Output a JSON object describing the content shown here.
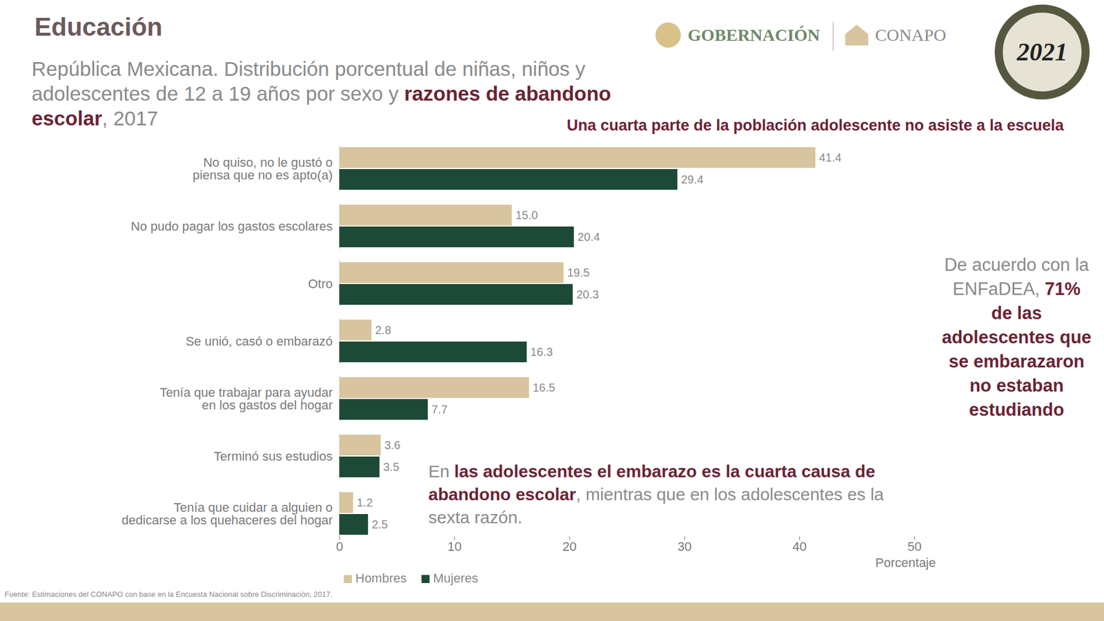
{
  "header": "Educación",
  "logos": [
    "GOBERNACIÓN",
    "CONAPO",
    "2021"
  ],
  "source": "Fuente: Estimaciones del CONAPO con base en la Encuesta Nacional sobre Discriminación, 2017.",
  "chart_data": {
    "type": "bar",
    "orientation": "horizontal",
    "title": [
      "República Mexicana. Distribución porcentual de niñas, niños y adolescentes de 12 a 19 años por sexo y ",
      "razones de abandono escolar",
      ", 2017"
    ],
    "subtitle": "Una cuarta parte de la población adolescente no asiste a la escuela",
    "categories": [
      "No quiso, no le gustó o piensa que no es apto(a)",
      "No pudo pagar los gastos escolares",
      "Otro",
      "Se unió, casó o embarazó",
      "Tenía que trabajar para ayudar en los gastos del hogar",
      "Terminó sus estudios",
      "Tenía que cuidar a alguien o dedicarse a los quehaceres del hogar"
    ],
    "series": [
      {
        "name": "Hombres",
        "color": "#d8c59f",
        "values": [
          41.4,
          15.0,
          19.5,
          2.8,
          16.5,
          3.6,
          1.2
        ],
        "value_labels": [
          "41.4",
          "15.0",
          "19.5",
          "2.8",
          "16.5",
          "3.6",
          "1.2"
        ]
      },
      {
        "name": "Mujeres",
        "color": "#1d4a36",
        "values": [
          29.4,
          20.4,
          20.3,
          16.3,
          7.7,
          3.5,
          2.5
        ],
        "value_labels": [
          "29.4",
          "20.4",
          "20.3",
          "16.3",
          "7.7",
          "3.5",
          "2.5"
        ]
      }
    ],
    "xlim": [
      0,
      50
    ],
    "xticks": [
      0,
      10,
      20,
      30,
      40,
      50
    ],
    "xlabel": "Porcentaje",
    "grid": false,
    "data_labels": true,
    "legend": "bottom",
    "annotations": [
      [
        "En ",
        "las adolescentes el embarazo es la cuarta causa de abandono escolar",
        ", mientras que en los adolescentes es la sexta razón."
      ],
      [
        "De acuerdo con la ENFaDEA, ",
        "71% de las adolescentes que se embarazaron no estaban estudiando"
      ]
    ]
  }
}
